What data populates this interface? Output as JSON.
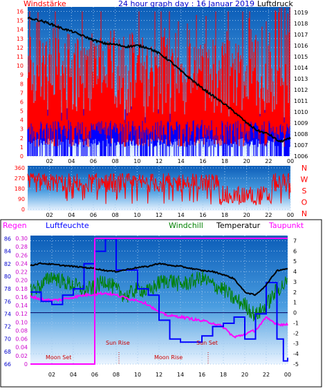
{
  "colors": {
    "wind": "#ff0000",
    "gust_blue": "#0000ff",
    "pressure": "#000000",
    "rain": "#ff00ff",
    "humidity": "#0000ff",
    "windchill": "#008000",
    "temperature": "#000000",
    "dewpoint": "#ff00ff",
    "bg_top": "#0b5db8",
    "bg_bottom": "#eaf4ff"
  },
  "top_panel": {
    "title": "24 hour graph day : 16 Januar 2019",
    "left_label": "Windstärke",
    "right_label": "Luftdruck"
  },
  "mid_panel": {
    "compass": [
      "N",
      "W",
      "S",
      "O",
      "N"
    ]
  },
  "bottom_panel": {
    "labels": {
      "rain": "Regen",
      "humidity": "Luftfeuchte",
      "windchill": "Windchill",
      "temperature": "Temperatur",
      "dewpoint": "Taupunkt"
    },
    "moon_set": "Moon Set",
    "sun_rise": "Sun Rise",
    "moon_rise": "Moon Rise",
    "sun_set": "Sun Set"
  },
  "chart_data": [
    {
      "type": "line",
      "x_ticks": [
        "02",
        "04",
        "06",
        "08",
        "10",
        "12",
        "14",
        "16",
        "18",
        "20",
        "22",
        "00"
      ],
      "y_left": {
        "ticks": [
          0,
          1,
          2,
          3,
          4,
          5,
          6,
          7,
          8,
          9,
          10,
          11,
          12,
          13,
          14,
          15,
          16
        ],
        "ylim": [
          0,
          16.5
        ]
      },
      "y_right": {
        "ticks": [
          1006,
          1007,
          1008,
          1009,
          1010,
          1011,
          1012,
          1013,
          1014,
          1015,
          1016,
          1017,
          1018,
          1019
        ],
        "ylim": [
          1006,
          1019.5
        ]
      },
      "series": [
        {
          "name": "Windstärke",
          "axis": "left",
          "note": "noisy 0-16 red bars"
        },
        {
          "name": "Luftdruck",
          "axis": "right",
          "x": [
            0,
            1,
            2,
            3,
            4,
            5,
            6,
            7,
            8,
            9,
            10,
            11,
            12,
            13,
            14,
            15,
            16,
            17,
            18,
            19,
            20,
            21,
            22,
            23,
            24
          ],
          "values": [
            1018.5,
            1018.3,
            1018.0,
            1017.6,
            1017.3,
            1016.9,
            1016.5,
            1016.2,
            1016.1,
            1015.9,
            1016.0,
            1015.8,
            1015.3,
            1014.6,
            1013.7,
            1012.9,
            1012.1,
            1011.4,
            1010.7,
            1009.9,
            1009.0,
            1008.3,
            1008.0,
            1007.3,
            1007.6
          ]
        }
      ]
    },
    {
      "type": "scatter",
      "x_ticks": [
        "02",
        "04",
        "06",
        "08",
        "10",
        "12",
        "14",
        "16",
        "18",
        "20",
        "22",
        "00"
      ],
      "y_ticks": [
        0,
        90,
        180,
        270,
        360
      ],
      "ylim": [
        0,
        360
      ],
      "series": [
        {
          "name": "wind direction",
          "note": "noisy red line mostly 150-300"
        }
      ]
    },
    {
      "type": "line",
      "x_ticks": [
        "02",
        "04",
        "06",
        "08",
        "10",
        "12",
        "14",
        "16",
        "18",
        "20",
        "22",
        "00"
      ],
      "y_humidity": {
        "ticks": [
          66,
          68,
          70,
          72,
          74,
          76,
          78,
          80,
          82,
          84,
          86
        ],
        "ylim": [
          66,
          86.5
        ]
      },
      "y_rain": {
        "ticks": [
          0,
          0.02,
          0.04,
          0.06,
          0.08,
          0.1,
          0.12,
          0.14,
          0.16,
          0.18,
          0.2,
          0.22,
          0.24,
          0.26,
          0.28,
          0.3
        ]
      },
      "y_temp": {
        "ticks": [
          -5,
          -4,
          -3,
          -2,
          -1,
          0,
          1,
          2,
          3,
          4,
          5,
          6,
          7
        ],
        "ylim": [
          -5,
          7.5
        ]
      },
      "series": [
        {
          "name": "Temperatur",
          "x": [
            0,
            1,
            2,
            3,
            4,
            5,
            6,
            7,
            8,
            9,
            10,
            11,
            12,
            13,
            14,
            15,
            16,
            17,
            18,
            19,
            20,
            21,
            22,
            23,
            24
          ],
          "values": [
            4.6,
            4.8,
            4.7,
            4.6,
            4.5,
            4.4,
            4.3,
            4.1,
            4.0,
            4.2,
            4.4,
            4.5,
            4.8,
            4.6,
            4.5,
            4.3,
            4.1,
            4.0,
            3.7,
            3.3,
            2.0,
            1.7,
            2.7,
            4.1,
            4.3
          ]
        },
        {
          "name": "Windchill",
          "x": [
            0,
            1,
            2,
            3,
            4,
            5,
            6,
            7,
            8,
            9,
            10,
            11,
            12,
            13,
            14,
            15,
            16,
            17,
            18,
            19,
            20,
            21,
            22,
            23,
            24
          ],
          "values": [
            2.2,
            2.6,
            3.6,
            3.0,
            2.7,
            2.2,
            2.4,
            3.2,
            2.2,
            1.6,
            2.4,
            2.0,
            2.9,
            3.2,
            2.7,
            3.0,
            3.4,
            2.7,
            2.3,
            1.3,
            0.8,
            -0.3,
            0.7,
            2.2,
            3.0
          ]
        },
        {
          "name": "Taupunkt",
          "x": [
            0,
            1,
            2,
            3,
            4,
            5,
            6,
            7,
            8,
            9,
            10,
            11,
            12,
            13,
            14,
            15,
            16,
            17,
            18,
            19,
            20,
            21,
            22,
            23,
            24
          ],
          "values": [
            1.6,
            1.3,
            1.2,
            1.3,
            1.5,
            1.7,
            1.8,
            1.9,
            1.7,
            1.4,
            1.2,
            0.8,
            0.0,
            -0.3,
            -0.4,
            -0.6,
            -0.8,
            -1.0,
            -1.4,
            -2.4,
            -2.1,
            -1.7,
            -0.5,
            -1.1,
            -1.2
          ]
        },
        {
          "name": "Luftfeuchte",
          "x": [
            0,
            1,
            2,
            3,
            4,
            5,
            6,
            7,
            8,
            9,
            10,
            11,
            12,
            13,
            14,
            15,
            16,
            17,
            18,
            19,
            20,
            21,
            22,
            23,
            23.6,
            24
          ],
          "values": [
            77.5,
            76.0,
            75.5,
            77.0,
            78.0,
            82.0,
            84.0,
            86.0,
            81.0,
            81.0,
            78.0,
            77.0,
            73.0,
            70.0,
            69.5,
            69.5,
            70.5,
            72.0,
            72.5,
            73.5,
            70.0,
            74.0,
            79.0,
            70.0,
            66.5,
            67.0
          ]
        },
        {
          "name": "Regen",
          "x": [
            0,
            5.9,
            6.0,
            24
          ],
          "values": [
            0.0,
            0.0,
            0.3,
            0.3
          ]
        }
      ]
    }
  ]
}
